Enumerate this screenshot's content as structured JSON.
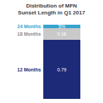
{
  "chart_data": {
    "type": "bar",
    "title": "Distribution of MFN Sunset Length in Q1 2017",
    "categories": [
      null
    ],
    "stacked": true,
    "data_labels": true,
    "tick_labels": false,
    "series": [
      {
        "name": "12 Months",
        "color": "#1c2a78",
        "values": [
          0.79
        ],
        "value_labels": [
          "0.79"
        ]
      },
      {
        "name": "18 Months",
        "color": "#c9c9c9",
        "values": [
          0.16
        ],
        "value_labels": [
          "0.16"
        ]
      },
      {
        "name": "24 Months",
        "color": "#35a3cf",
        "values": [
          0.05
        ],
        "value_labels": [
          "5%"
        ]
      }
    ]
  }
}
